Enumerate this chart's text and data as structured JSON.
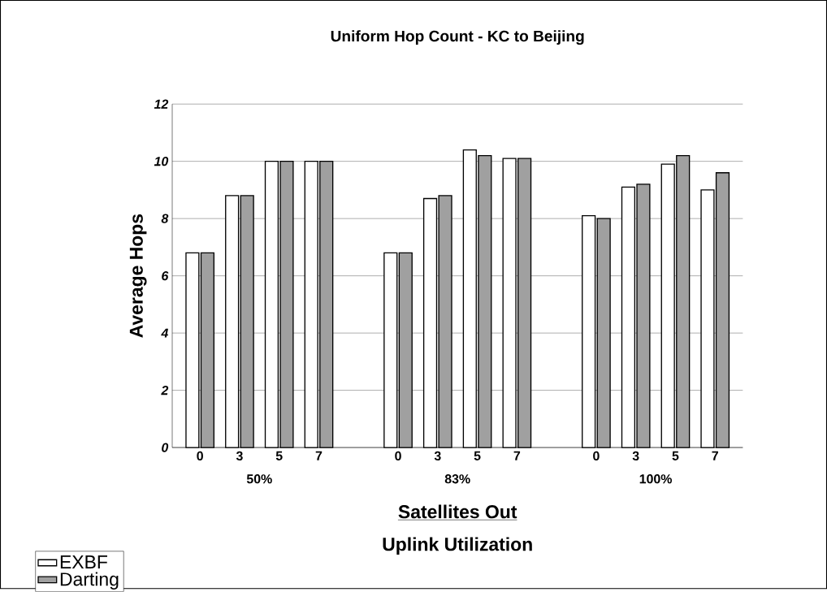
{
  "chart_data": {
    "type": "bar",
    "title": "Uniform Hop Count - KC to Beijing",
    "categories": [
      "0",
      "3",
      "5",
      "7",
      "0",
      "3",
      "5",
      "7",
      "0",
      "3",
      "5",
      "7"
    ],
    "series": [
      {
        "name": "EXBF",
        "color": "#ffffff",
        "values": [
          6.8,
          8.8,
          10.0,
          10.0,
          6.8,
          8.7,
          10.4,
          10.1,
          8.1,
          9.1,
          9.9,
          9.0
        ]
      },
      {
        "name": "Darting",
        "color": "#a0a0a0",
        "values": [
          6.8,
          8.8,
          10.0,
          10.0,
          6.8,
          8.8,
          10.2,
          10.1,
          8.0,
          9.2,
          10.2,
          9.6
        ]
      }
    ],
    "xlabel": "Satellites Out",
    "ylabel": "Average Hops",
    "annotations": [
      "50%",
      "83%",
      "100%",
      "Uplink Utilization"
    ],
    "ylim": [
      0,
      12
    ],
    "yticks": [
      0,
      2,
      4,
      6,
      8,
      10,
      12
    ],
    "grid": "y",
    "legend": "bottom left"
  }
}
